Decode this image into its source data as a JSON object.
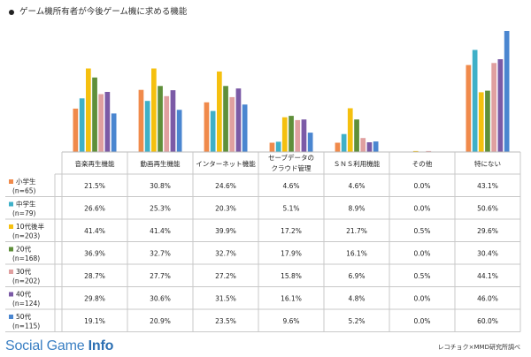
{
  "title": "ゲーム機所有者が今後ゲーム機に求める機能",
  "brand": {
    "part1": "Social Game",
    "part2": "Info"
  },
  "source": "レコチョク×MMD研究所調べ",
  "chart_data": {
    "type": "bar",
    "categories": [
      "音楽再生機能",
      "動画再生機能",
      "インターネット機能",
      "セーブデータの\nクラウド管理",
      "ＳＮＳ利用機能",
      "その他",
      "特にない"
    ],
    "series": [
      {
        "name": "小学生",
        "sublabel": "(n=65)",
        "color": "#f08a4b",
        "values": [
          21.5,
          30.8,
          24.6,
          4.6,
          4.6,
          0.0,
          43.1
        ]
      },
      {
        "name": "中学生",
        "sublabel": "(n=79)",
        "color": "#3fb0c8",
        "values": [
          26.6,
          25.3,
          20.3,
          5.1,
          8.9,
          0.0,
          50.6
        ]
      },
      {
        "name": "10代後半",
        "sublabel": "(n=203)",
        "color": "#f5c00f",
        "values": [
          41.4,
          41.4,
          39.9,
          17.2,
          21.7,
          0.5,
          29.6
        ]
      },
      {
        "name": "20代",
        "sublabel": "(n=168)",
        "color": "#5f8f3a",
        "values": [
          36.9,
          32.7,
          32.7,
          17.9,
          16.1,
          0.0,
          30.4
        ]
      },
      {
        "name": "30代",
        "sublabel": "(n=202)",
        "color": "#e0a0a0",
        "values": [
          28.7,
          27.7,
          27.2,
          15.8,
          6.9,
          0.5,
          44.1
        ]
      },
      {
        "name": "40代",
        "sublabel": "(n=124)",
        "color": "#7b5aa6",
        "values": [
          29.8,
          30.6,
          31.5,
          16.1,
          4.8,
          0.0,
          46.0
        ]
      },
      {
        "name": "50代",
        "sublabel": "(n=115)",
        "color": "#4a86d0",
        "values": [
          19.1,
          20.9,
          23.5,
          9.6,
          5.2,
          0.0,
          60.0
        ]
      }
    ],
    "value_format": "%",
    "ylim": [
      0,
      60
    ],
    "grid": false,
    "legend": "table"
  }
}
